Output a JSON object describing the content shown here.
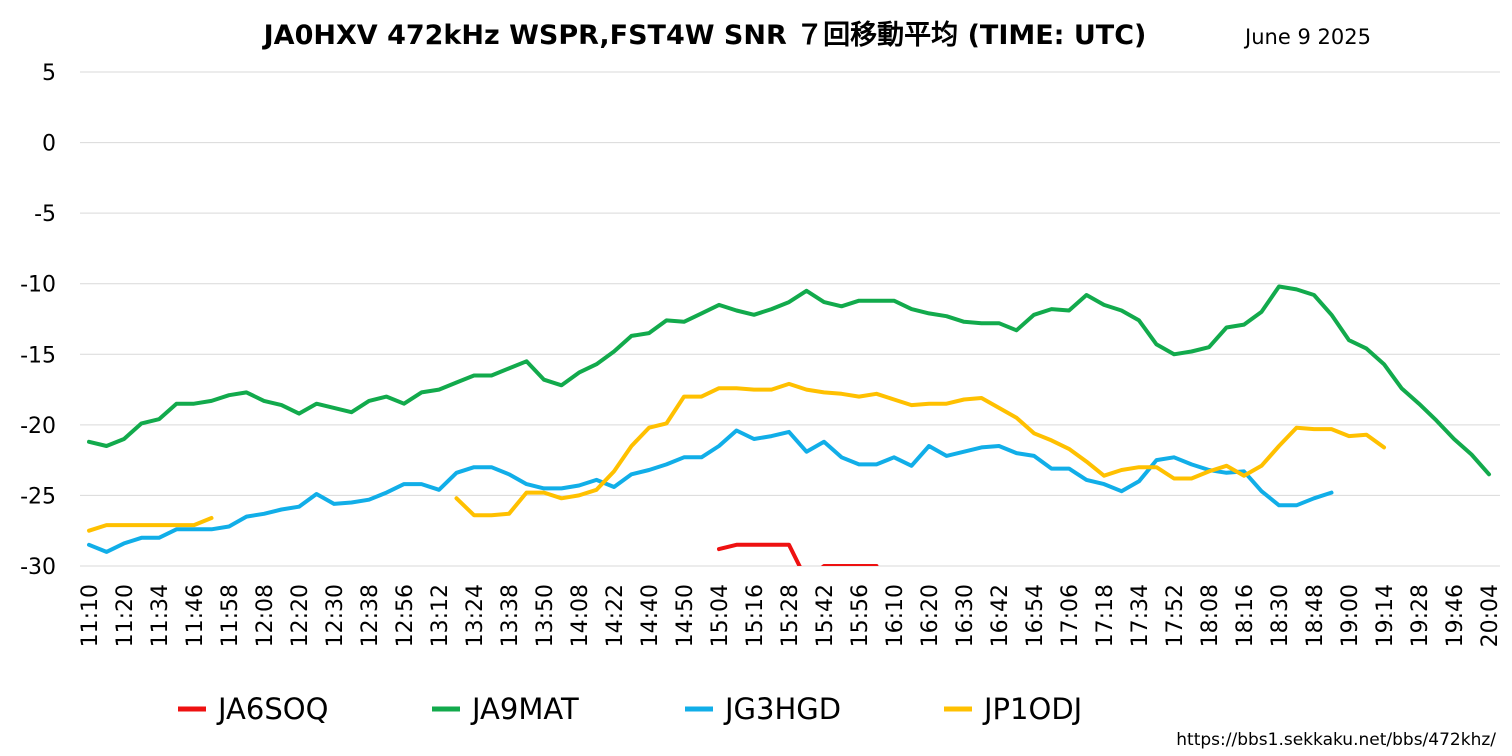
{
  "chart_data": {
    "type": "line",
    "title": "JA0HXV 472kHz WSPR,FST4W SNR ７回移動平均 (TIME: UTC)",
    "subtitle": "June 9 2025",
    "xlabel": "",
    "ylabel": "",
    "ylim": [
      -30,
      5
    ],
    "yticks": [
      5,
      0,
      -5,
      -10,
      -15,
      -20,
      -25,
      -30
    ],
    "grid": true,
    "legend_position": "bottom",
    "x": [
      "11:10",
      "11:14",
      "11:20",
      "11:26",
      "11:34",
      "11:40",
      "11:46",
      "11:52",
      "11:58",
      "12:04",
      "12:08",
      "12:14",
      "12:20",
      "12:24",
      "12:30",
      "12:34",
      "12:38",
      "12:50",
      "12:56",
      "13:00",
      "13:12",
      "13:18",
      "13:24",
      "13:30",
      "13:38",
      "13:44",
      "13:50",
      "14:00",
      "14:08",
      "14:14",
      "14:22",
      "14:30",
      "14:40",
      "14:44",
      "14:50",
      "15:00",
      "15:04",
      "15:10",
      "15:16",
      "15:22",
      "15:28",
      "15:36",
      "15:42",
      "15:50",
      "15:56",
      "16:04",
      "16:10",
      "16:16",
      "16:20",
      "16:26",
      "16:30",
      "16:36",
      "16:42",
      "16:48",
      "16:54",
      "17:00",
      "17:06",
      "17:12",
      "17:18",
      "17:24",
      "17:34",
      "17:40",
      "17:52",
      "18:00",
      "18:08",
      "18:12",
      "18:16",
      "18:24",
      "18:30",
      "18:40",
      "18:48",
      "18:54",
      "19:00",
      "19:06",
      "19:14",
      "19:20",
      "19:28",
      "19:36",
      "19:46",
      "19:54",
      "20:04"
    ],
    "xtick_labels": [
      "11:10",
      "11:20",
      "11:34",
      "11:46",
      "11:58",
      "12:08",
      "12:20",
      "12:30",
      "12:38",
      "12:56",
      "13:12",
      "13:24",
      "13:38",
      "13:50",
      "14:08",
      "14:22",
      "14:40",
      "14:50",
      "15:04",
      "15:16",
      "15:28",
      "15:42",
      "15:56",
      "16:10",
      "16:20",
      "16:30",
      "16:42",
      "16:54",
      "17:06",
      "17:18",
      "17:34",
      "17:52",
      "18:08",
      "18:16",
      "18:30",
      "18:48",
      "19:00",
      "19:14",
      "19:28",
      "19:46",
      "20:04"
    ],
    "series": [
      {
        "name": "JA6SOQ",
        "color": "#ee1111",
        "values": [
          null,
          null,
          null,
          null,
          null,
          null,
          null,
          null,
          null,
          null,
          null,
          null,
          null,
          null,
          null,
          null,
          null,
          null,
          null,
          null,
          null,
          null,
          null,
          null,
          null,
          null,
          null,
          null,
          null,
          null,
          null,
          null,
          null,
          null,
          null,
          null,
          -28.8,
          -28.5,
          -28.5,
          -28.5,
          -28.5,
          -31,
          -30,
          -30,
          -30,
          -30,
          null,
          null,
          null,
          null,
          null,
          null,
          null,
          null,
          null,
          null,
          null,
          null,
          null,
          null,
          null,
          null,
          null,
          null,
          null,
          null,
          null,
          null,
          null,
          null,
          null,
          null,
          null,
          null,
          null,
          null,
          null,
          null,
          null,
          null,
          null
        ]
      },
      {
        "name": "JA9MAT",
        "color": "#12aa4c",
        "values": [
          -21.2,
          -21.5,
          -21,
          -19.9,
          -19.6,
          -18.5,
          -18.5,
          -18.3,
          -17.9,
          -17.7,
          -18.3,
          -18.6,
          -19.2,
          -18.5,
          -18.8,
          -19.1,
          -18.3,
          -18,
          -18.5,
          -17.7,
          -17.5,
          -17,
          -16.5,
          -16.5,
          -16,
          -15.5,
          -16.8,
          -17.2,
          -16.3,
          -15.7,
          -14.8,
          -13.7,
          -13.5,
          -12.6,
          -12.7,
          -12.1,
          -11.5,
          -11.9,
          -12.2,
          -11.8,
          -11.3,
          -10.5,
          -11.3,
          -11.6,
          -11.2,
          -11.2,
          -11.2,
          -11.8,
          -12.1,
          -12.3,
          -12.7,
          -12.8,
          -12.8,
          -13.3,
          -12.2,
          -11.8,
          -11.9,
          -10.8,
          -11.5,
          -11.9,
          -12.6,
          -14.3,
          -15,
          -14.8,
          -14.5,
          -13.1,
          -12.9,
          -12,
          -10.2,
          -10.4,
          -10.8,
          -12.2,
          -14,
          -14.6,
          -15.7,
          -17.4,
          -18.5,
          -19.7,
          -21,
          -22.1,
          -23.5
        ]
      },
      {
        "name": "JG3HGD",
        "color": "#11aee8",
        "values": [
          -28.5,
          -29,
          -28.4,
          -28,
          -28,
          -27.4,
          -27.4,
          -27.4,
          -27.2,
          -26.5,
          -26.3,
          -26,
          -25.8,
          -24.9,
          -25.6,
          -25.5,
          -25.3,
          -24.8,
          -24.2,
          -24.2,
          -24.6,
          -23.4,
          -23,
          -23,
          -23.5,
          -24.2,
          -24.5,
          -24.5,
          -24.3,
          -23.9,
          -24.4,
          -23.5,
          -23.2,
          -22.8,
          -22.3,
          -22.3,
          -21.5,
          -20.4,
          -21,
          -20.8,
          -20.5,
          -21.9,
          -21.2,
          -22.3,
          -22.8,
          -22.8,
          -22.3,
          -22.9,
          -21.5,
          -22.2,
          -21.9,
          -21.6,
          -21.5,
          -22,
          -22.2,
          -23.1,
          -23.1,
          -23.9,
          -24.2,
          -24.7,
          -24,
          -22.5,
          -22.3,
          -22.8,
          -23.2,
          -23.4,
          -23.3,
          -24.7,
          -25.7,
          -25.7,
          -25.2,
          -24.8,
          null,
          null,
          null,
          null,
          null,
          null,
          null,
          null,
          null
        ]
      },
      {
        "name": "JP1ODJ",
        "color": "#ffc000",
        "values": [
          -27.5,
          -27.1,
          -27.1,
          -27.1,
          -27.1,
          -27.1,
          -27.1,
          -26.6,
          null,
          null,
          null,
          null,
          null,
          null,
          null,
          null,
          null,
          null,
          null,
          null,
          null,
          -25.2,
          -26.4,
          -26.4,
          -26.3,
          -24.8,
          -24.8,
          -25.2,
          -25,
          -24.6,
          -23.3,
          -21.5,
          -20.2,
          -19.9,
          -18,
          -18,
          -17.4,
          -17.4,
          -17.5,
          -17.5,
          -17.1,
          -17.5,
          -17.7,
          -17.8,
          -18,
          -17.8,
          -18.2,
          -18.6,
          -18.5,
          -18.5,
          -18.2,
          -18.1,
          -18.8,
          -19.5,
          -20.6,
          -21.1,
          -21.7,
          -22.6,
          -23.6,
          -23.2,
          -23,
          -23,
          -23.8,
          -23.8,
          -23.3,
          -22.9,
          -23.6,
          -22.9,
          -21.5,
          -20.2,
          -20.3,
          -20.3,
          -20.8,
          -20.7,
          -21.6,
          null,
          null,
          null,
          null,
          null,
          null
        ]
      }
    ]
  },
  "source_text": "https://bbs1.sekkaku.net/bbs/472khz/"
}
